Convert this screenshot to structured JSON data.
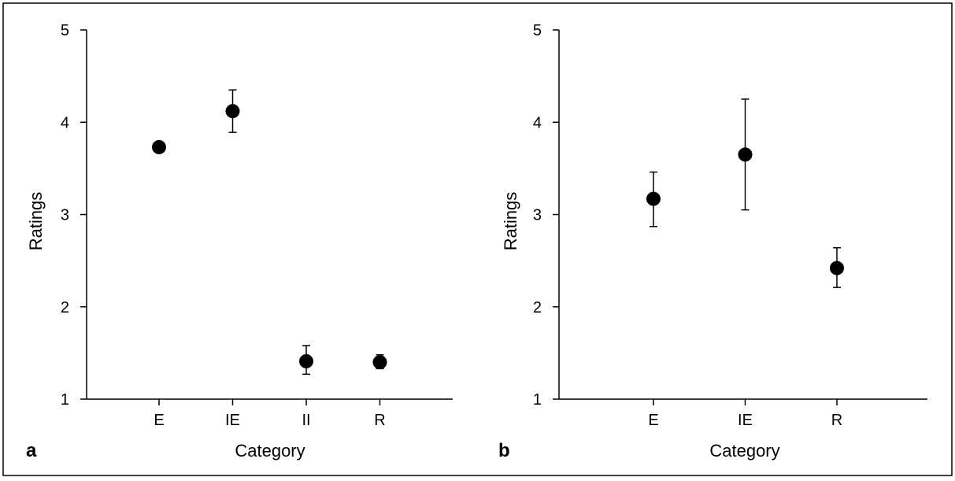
{
  "chart_data": [
    {
      "type": "scatter",
      "panel_label": "a",
      "title": "",
      "xlabel": "Category",
      "ylabel": "Ratings",
      "categories": [
        "E",
        "IE",
        "II",
        "R"
      ],
      "values": [
        3.73,
        4.12,
        1.41,
        1.4
      ],
      "error_low": [
        3.73,
        3.89,
        1.27,
        1.33
      ],
      "error_high": [
        3.73,
        4.35,
        1.58,
        1.48
      ],
      "ylim": [
        1,
        5
      ],
      "yticks": [
        "1",
        "2",
        "3",
        "4",
        "5"
      ],
      "grid": false,
      "legend": "none"
    },
    {
      "type": "scatter",
      "panel_label": "b",
      "title": "",
      "xlabel": "Category",
      "ylabel": "Ratings",
      "categories": [
        "E",
        "IE",
        "R"
      ],
      "values": [
        3.17,
        3.65,
        2.42
      ],
      "error_low": [
        2.87,
        3.05,
        2.21
      ],
      "error_high": [
        3.46,
        4.25,
        2.64
      ],
      "ylim": [
        1,
        5
      ],
      "yticks": [
        "1",
        "2",
        "3",
        "4",
        "5"
      ],
      "grid": false,
      "legend": "none"
    }
  ],
  "colors": {
    "marker": "#000000",
    "axis": "#000000",
    "background": "#ffffff",
    "border": "#000000"
  }
}
